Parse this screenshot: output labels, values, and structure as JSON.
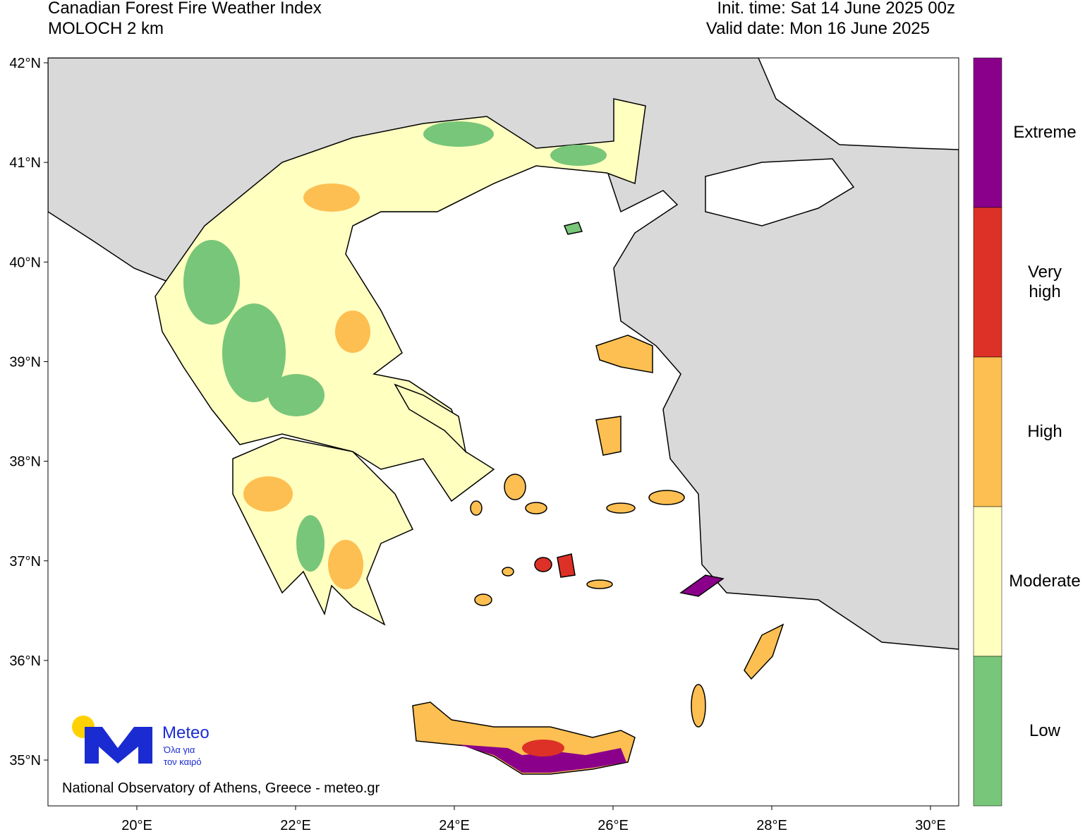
{
  "header": {
    "title": "Canadian Forest Fire Weather Index",
    "model": "MOLOCH 2 km",
    "init_time": "Init. time: Sat 14 June 2025 00z",
    "valid_date": "Valid date: Mon 16 June 2025"
  },
  "map": {
    "lat_ticks": [
      {
        "value": 42,
        "label": "42°N"
      },
      {
        "value": 41,
        "label": "41°N"
      },
      {
        "value": 40,
        "label": "40°N"
      },
      {
        "value": 39,
        "label": "39°N"
      },
      {
        "value": 38,
        "label": "38°N"
      },
      {
        "value": 37,
        "label": "37°N"
      },
      {
        "value": 36,
        "label": "36°N"
      },
      {
        "value": 35,
        "label": "35°N"
      }
    ],
    "lon_ticks": [
      {
        "value": 20,
        "label": "20°E"
      },
      {
        "value": 22,
        "label": "22°E"
      },
      {
        "value": 24,
        "label": "24°E"
      },
      {
        "value": 26,
        "label": "26°E"
      },
      {
        "value": 28,
        "label": "28°E"
      },
      {
        "value": 30,
        "label": "30°E"
      }
    ]
  },
  "legend": [
    {
      "label": "Extreme",
      "color": "#8b008b"
    },
    {
      "label": "Very high",
      "color": "#dd3127"
    },
    {
      "label": "High",
      "color": "#fdbf51"
    },
    {
      "label": "Moderate",
      "color": "#ffffc0"
    },
    {
      "label": "Low",
      "color": "#78c679"
    }
  ],
  "logo": {
    "name": "Meteo",
    "tagline_1": "Όλα για",
    "tagline_2": "τον καιρό"
  },
  "credit": "National Observatory of Athens, Greece - meteo.gr"
}
